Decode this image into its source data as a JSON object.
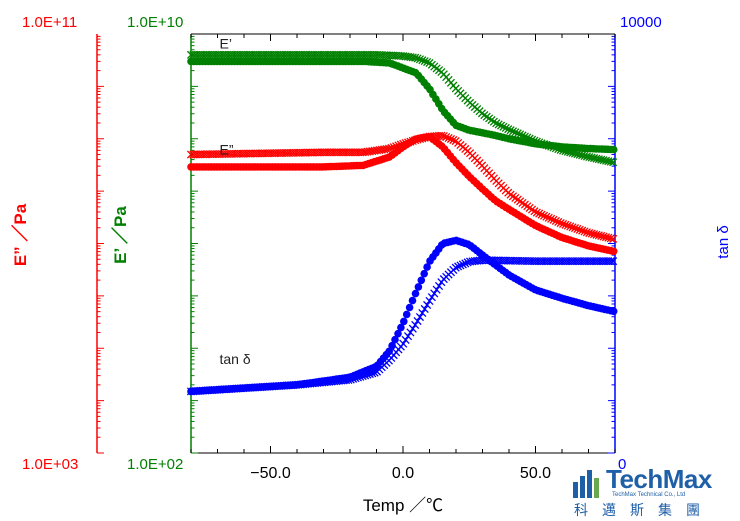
{
  "chart_data": {
    "type": "line",
    "xlabel": "Temp ／℃",
    "xlim": [
      -80,
      80
    ],
    "x_ticks": [
      -50,
      0,
      50
    ],
    "x_tick_labels": [
      "−50.0",
      "0.0",
      "50.0"
    ],
    "axes": {
      "E_double_prime": {
        "label": "E” ／Pa",
        "min_label": "1.0E+03",
        "max_label": "1.0E+11",
        "log_min": 3,
        "log_max": 11,
        "color": "#ff0000"
      },
      "E_prime": {
        "label": "E’ ／Pa",
        "min_label": "1.0E+02",
        "max_label": "1.0E+10",
        "log_min": 2,
        "log_max": 10,
        "color": "#008000"
      },
      "tan_delta": {
        "label": "tan δ",
        "min_label": "0",
        "max_label": "10000",
        "log_min": -4,
        "log_max": 4,
        "color": "#0000ff"
      }
    },
    "scale": "log",
    "grid": false,
    "annotations": [
      {
        "text": "E’",
        "x": -70,
        "y_axis": "E_prime",
        "y": 5300000000.0
      },
      {
        "text": "E”",
        "x": -70,
        "y_axis": "E_prime",
        "y": 50000000.0
      },
      {
        "text": "tan δ",
        "x": -70,
        "y_axis": "E_prime",
        "y": 5000.0
      }
    ],
    "series": [
      {
        "axis": "E_prime",
        "color": "#008000",
        "marker": "dot",
        "x": [
          -80,
          -30,
          -15,
          -5,
          5,
          10,
          15,
          20,
          25,
          30,
          35,
          40,
          50,
          60,
          70,
          80
        ],
        "y": [
          3000000000.0,
          3000000000.0,
          3000000000.0,
          2800000000.0,
          1800000000.0,
          900000000.0,
          350000000.0,
          180000000.0,
          145000000.0,
          130000000.0,
          115000000.0,
          100000000.0,
          80000000.0,
          70000000.0,
          65000000.0,
          62000000.0
        ]
      },
      {
        "axis": "E_prime",
        "color": "#008000",
        "marker": "cross",
        "x": [
          -80,
          -10,
          0,
          5,
          10,
          15,
          20,
          25,
          30,
          35,
          40,
          50,
          60,
          70,
          80
        ],
        "y": [
          4000000000.0,
          4000000000.0,
          3800000000.0,
          3500000000.0,
          2800000000.0,
          1800000000.0,
          900000000.0,
          500000000.0,
          300000000.0,
          200000000.0,
          150000000.0,
          90000000.0,
          60000000.0,
          45000000.0,
          35000000.0
        ]
      },
      {
        "axis": "E_double_prime",
        "color": "#ff0000",
        "marker": "dot",
        "x": [
          -80,
          -30,
          -15,
          -5,
          0,
          5,
          10,
          15,
          20,
          25,
          30,
          35,
          40,
          50,
          60,
          70,
          80
        ],
        "y": [
          290000000.0,
          290000000.0,
          310000000.0,
          450000000.0,
          700000000.0,
          1000000000.0,
          1100000000.0,
          700000000.0,
          350000000.0,
          190000000.0,
          110000000.0,
          65000000.0,
          45000000.0,
          22000000.0,
          13000000.0,
          9000000.0,
          7000000.0
        ]
      },
      {
        "axis": "E_double_prime",
        "color": "#ff0000",
        "marker": "cross",
        "x": [
          -80,
          -30,
          -15,
          -5,
          0,
          5,
          10,
          15,
          20,
          25,
          30,
          35,
          40,
          50,
          60,
          70,
          80
        ],
        "y": [
          500000000.0,
          550000000.0,
          550000000.0,
          650000000.0,
          800000000.0,
          950000000.0,
          1100000000.0,
          1150000000.0,
          900000000.0,
          550000000.0,
          300000000.0,
          160000000.0,
          90000000.0,
          40000000.0,
          24000000.0,
          16000000.0,
          12000000.0
        ]
      },
      {
        "axis": "tan_delta",
        "color": "#0000ff",
        "marker": "dot",
        "x": [
          -80,
          -40,
          -20,
          -10,
          -5,
          0,
          5,
          10,
          15,
          20,
          25,
          30,
          40,
          50,
          60,
          70,
          80
        ],
        "y": [
          0.0015,
          0.002,
          0.0028,
          0.0045,
          0.009,
          0.03,
          0.12,
          0.45,
          1.0,
          1.15,
          0.95,
          0.6,
          0.25,
          0.13,
          0.09,
          0.065,
          0.05
        ]
      },
      {
        "axis": "tan_delta",
        "color": "#0000ff",
        "marker": "cross",
        "x": [
          -80,
          -40,
          -20,
          -10,
          -5,
          0,
          5,
          10,
          15,
          20,
          25,
          30,
          40,
          50,
          60,
          70,
          80
        ],
        "y": [
          0.0015,
          0.002,
          0.0025,
          0.0035,
          0.006,
          0.012,
          0.03,
          0.08,
          0.2,
          0.35,
          0.45,
          0.48,
          0.47,
          0.46,
          0.46,
          0.46,
          0.46
        ]
      }
    ]
  },
  "logo": {
    "name": "TechMax",
    "subtitle": "TechMax Technical Co., Ltd",
    "chinese": "科邁斯集團",
    "color": "#1f5fa8"
  }
}
